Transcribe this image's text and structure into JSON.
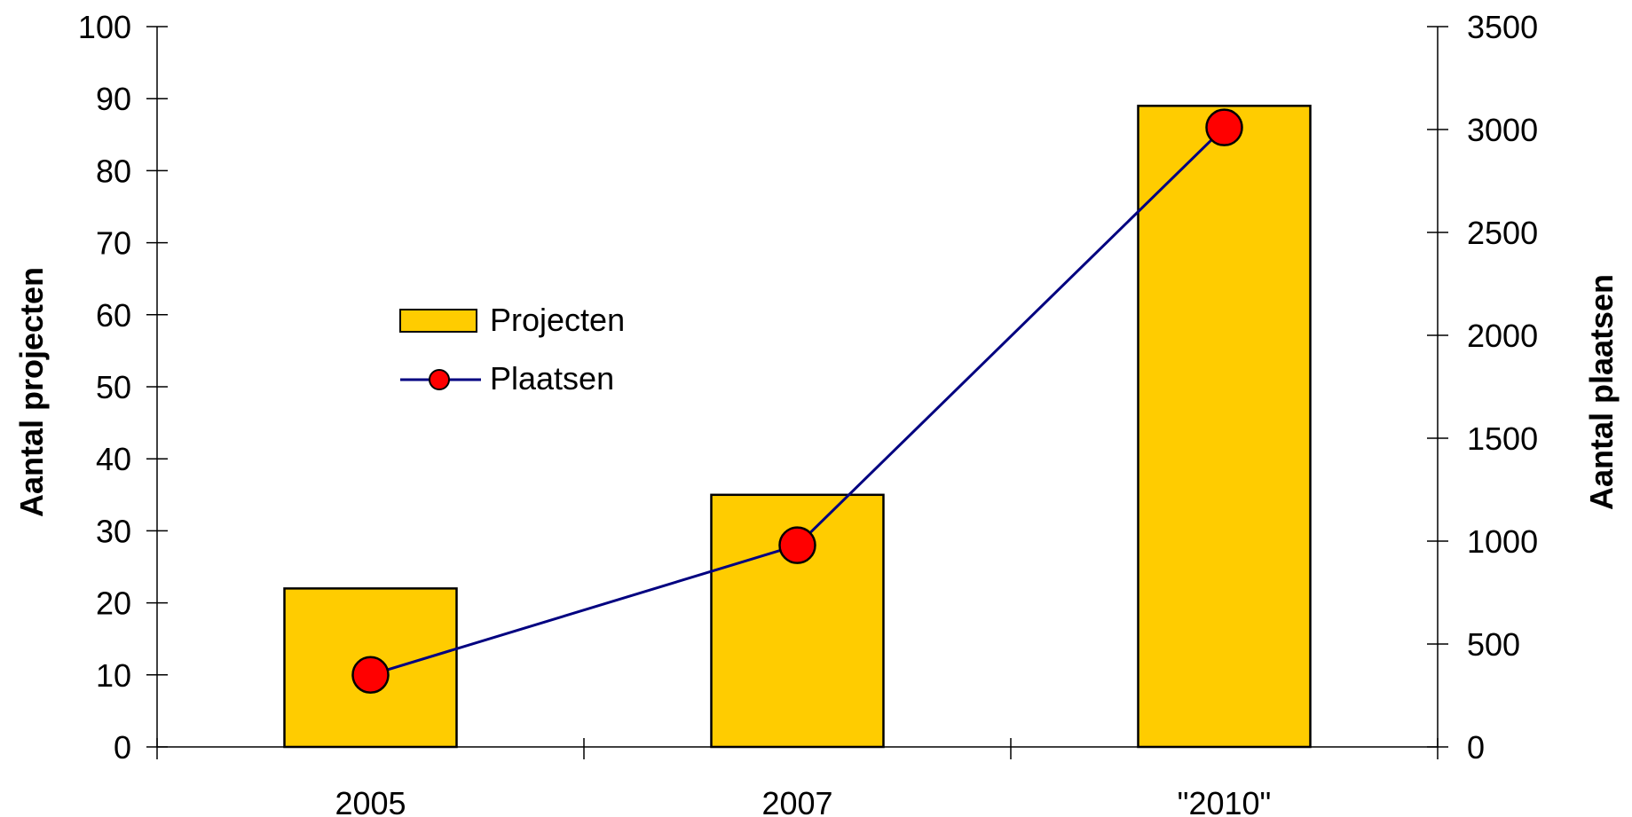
{
  "chart_data": {
    "type": "bar",
    "categories": [
      "2005",
      "2007",
      "\"2010\""
    ],
    "series": [
      {
        "name": "Projecten",
        "type": "bar",
        "axis": "left",
        "values": [
          22,
          35,
          89
        ]
      },
      {
        "name": "Plaatsen",
        "type": "line",
        "axis": "right",
        "values": [
          350,
          980,
          3010
        ]
      }
    ],
    "ylabel": "Aantal projecten",
    "y2label": "Aantal plaatsen",
    "ylim": [
      0,
      100
    ],
    "y2lim": [
      0,
      3500
    ],
    "yticks": [
      "0",
      "10",
      "20",
      "30",
      "40",
      "50",
      "60",
      "70",
      "80",
      "90",
      "100"
    ],
    "y2ticks": [
      "0",
      "500",
      "1000",
      "1500",
      "2000",
      "2500",
      "3000",
      "3500"
    ],
    "grid": false,
    "legend_position": "center-left",
    "colors": {
      "bar_fill": "#FFCC00",
      "bar_stroke": "#000000",
      "line": "#000080",
      "marker_fill": "#FF0000",
      "marker_stroke": "#000000"
    }
  }
}
